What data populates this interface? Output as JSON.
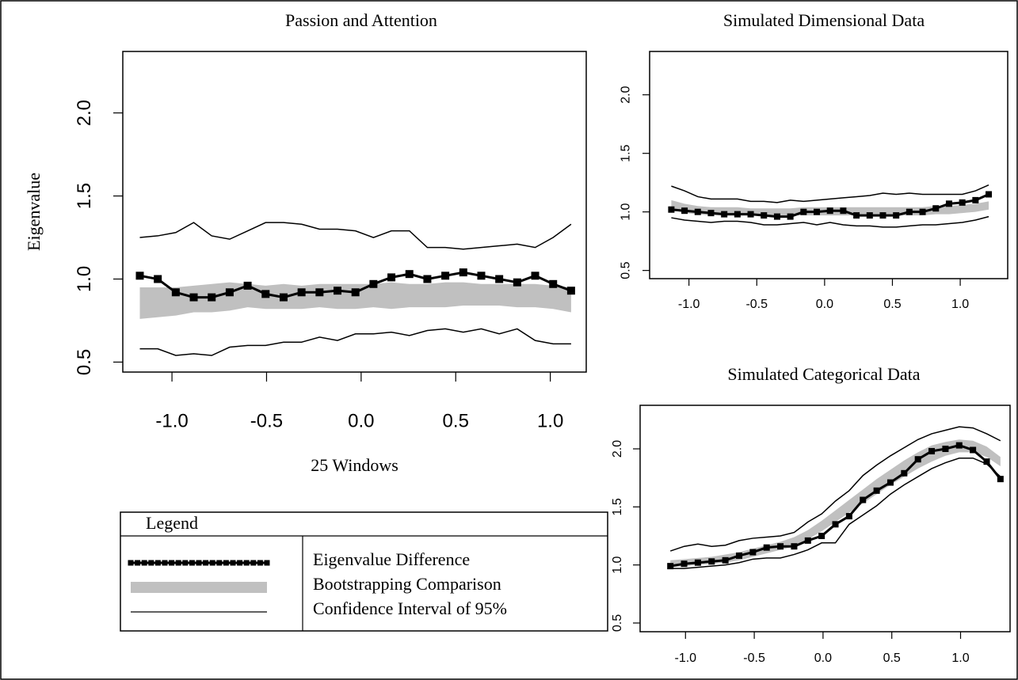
{
  "chart_data": [
    {
      "type": "line",
      "title": "Passion and Attention",
      "xlabel": "25 Windows",
      "ylabel": "Eigenvalue",
      "legend_title": "Legend",
      "x": [
        -1.17,
        -1.075,
        -0.98,
        -0.885,
        -0.79,
        -0.695,
        -0.6,
        -0.505,
        -0.41,
        -0.315,
        -0.22,
        -0.125,
        -0.03,
        0.065,
        0.16,
        0.255,
        0.35,
        0.445,
        0.54,
        0.635,
        0.73,
        0.825,
        0.92,
        1.015,
        1.11
      ],
      "series": [
        {
          "name": "Eigenvalue Difference",
          "style": "points",
          "color": "#000000",
          "values": [
            1.02,
            1.0,
            0.92,
            0.89,
            0.89,
            0.92,
            0.96,
            0.91,
            0.89,
            0.92,
            0.92,
            0.93,
            0.92,
            0.97,
            1.01,
            1.03,
            1.0,
            1.02,
            1.04,
            1.02,
            1.0,
            0.98,
            1.02,
            0.97,
            0.93
          ]
        },
        {
          "name": "Bootstrapping Comparison",
          "style": "band",
          "color": "#c0c0c0",
          "upper": [
            0.95,
            0.95,
            0.95,
            0.96,
            0.97,
            0.98,
            0.97,
            0.96,
            0.97,
            0.96,
            0.97,
            0.97,
            0.97,
            0.97,
            0.98,
            0.97,
            0.97,
            0.98,
            0.98,
            0.97,
            0.97,
            0.97,
            0.97,
            0.96,
            0.95
          ],
          "lower": [
            0.76,
            0.77,
            0.78,
            0.8,
            0.8,
            0.81,
            0.83,
            0.82,
            0.82,
            0.82,
            0.83,
            0.82,
            0.82,
            0.83,
            0.82,
            0.83,
            0.83,
            0.83,
            0.84,
            0.84,
            0.84,
            0.83,
            0.83,
            0.82,
            0.8
          ]
        },
        {
          "name": "Confidence Interval of 95%",
          "style": "lines",
          "color": "#000000",
          "upper": [
            1.25,
            1.26,
            1.28,
            1.34,
            1.26,
            1.24,
            1.29,
            1.34,
            1.34,
            1.33,
            1.3,
            1.3,
            1.29,
            1.25,
            1.29,
            1.29,
            1.19,
            1.19,
            1.18,
            1.19,
            1.2,
            1.21,
            1.19,
            1.25,
            1.33
          ],
          "lower": [
            0.58,
            0.58,
            0.54,
            0.55,
            0.54,
            0.59,
            0.6,
            0.6,
            0.62,
            0.62,
            0.65,
            0.63,
            0.67,
            0.67,
            0.68,
            0.66,
            0.69,
            0.7,
            0.68,
            0.7,
            0.67,
            0.7,
            0.63,
            0.61,
            0.61
          ]
        }
      ],
      "xlim": [
        -1.26,
        1.19
      ],
      "ylim": [
        0.44,
        2.37
      ],
      "xticks": [
        {
          "value": -1.0,
          "label": "-1.0"
        },
        -0.5,
        {
          "value": 0.0,
          "label": "0.0"
        },
        0.5,
        {
          "value": 1.0,
          "label": "1.0"
        }
      ],
      "yticks": [
        0.5,
        {
          "value": 1.0,
          "label": "1.0"
        },
        1.5,
        {
          "value": 2.0,
          "label": "2.0"
        }
      ]
    },
    {
      "type": "line",
      "title": "Simulated Dimensional Data",
      "x": [
        -1.13,
        -1.0325,
        -0.935,
        -0.8375,
        -0.74,
        -0.6425,
        -0.545,
        -0.4475,
        -0.35,
        -0.2525,
        -0.155,
        -0.0575,
        0.04,
        0.1375,
        0.235,
        0.3325,
        0.43,
        0.5275,
        0.625,
        0.7225,
        0.82,
        0.9175,
        1.015,
        1.1125,
        1.21
      ],
      "series": [
        {
          "style": "points",
          "color": "#000000",
          "values": [
            1.02,
            1.01,
            1.0,
            0.99,
            0.98,
            0.98,
            0.98,
            0.97,
            0.96,
            0.96,
            1.0,
            1.0,
            1.01,
            1.01,
            0.97,
            0.97,
            0.97,
            0.97,
            1.0,
            1.0,
            1.03,
            1.07,
            1.08,
            1.1,
            1.15
          ]
        },
        {
          "style": "band",
          "color": "#c0c0c0",
          "upper": [
            1.1,
            1.07,
            1.05,
            1.04,
            1.04,
            1.04,
            1.03,
            1.03,
            1.03,
            1.03,
            1.04,
            1.04,
            1.04,
            1.04,
            1.04,
            1.04,
            1.04,
            1.04,
            1.04,
            1.04,
            1.05,
            1.05,
            1.06,
            1.07,
            1.09
          ],
          "lower": [
            1.02,
            0.99,
            0.98,
            0.97,
            0.97,
            0.97,
            0.97,
            0.97,
            0.97,
            0.97,
            0.97,
            0.97,
            0.97,
            0.97,
            0.97,
            0.97,
            0.97,
            0.97,
            0.97,
            0.97,
            0.98,
            0.98,
            0.99,
            1.0,
            1.02
          ]
        },
        {
          "style": "lines",
          "color": "#000000",
          "upper": [
            1.22,
            1.18,
            1.13,
            1.11,
            1.11,
            1.11,
            1.09,
            1.09,
            1.08,
            1.1,
            1.09,
            1.1,
            1.11,
            1.12,
            1.13,
            1.14,
            1.16,
            1.15,
            1.16,
            1.15,
            1.15,
            1.15,
            1.15,
            1.18,
            1.23
          ],
          "lower": [
            0.95,
            0.93,
            0.92,
            0.91,
            0.92,
            0.92,
            0.91,
            0.89,
            0.89,
            0.9,
            0.91,
            0.89,
            0.91,
            0.89,
            0.88,
            0.88,
            0.87,
            0.87,
            0.88,
            0.89,
            0.89,
            0.9,
            0.91,
            0.93,
            0.96
          ]
        }
      ],
      "xlim": [
        -1.29,
        1.35
      ],
      "ylim": [
        0.43,
        2.37
      ],
      "xticks": [
        {
          "value": -1.0,
          "label": "-1.0"
        },
        -0.5,
        {
          "value": 0.0,
          "label": "0.0"
        },
        0.5,
        {
          "value": 1.0,
          "label": "1.0"
        }
      ],
      "yticks": [
        0.5,
        {
          "value": 1.0,
          "label": "1.0"
        },
        1.5,
        {
          "value": 2.0,
          "label": "2.0"
        }
      ]
    },
    {
      "type": "line",
      "title": "Simulated Categorical Data",
      "x": [
        -1.11,
        -1.01,
        -0.91,
        -0.81,
        -0.71,
        -0.61,
        -0.51,
        -0.41,
        -0.31,
        -0.21,
        -0.11,
        -0.01,
        0.09,
        0.19,
        0.29,
        0.39,
        0.49,
        0.59,
        0.69,
        0.79,
        0.89,
        0.99,
        1.09,
        1.19,
        1.29
      ],
      "series": [
        {
          "style": "points",
          "color": "#000000",
          "values": [
            0.99,
            1.01,
            1.02,
            1.03,
            1.04,
            1.08,
            1.11,
            1.15,
            1.16,
            1.16,
            1.21,
            1.25,
            1.35,
            1.42,
            1.56,
            1.64,
            1.71,
            1.79,
            1.91,
            1.98,
            2.0,
            2.03,
            1.99,
            1.89,
            1.74
          ]
        },
        {
          "style": "band",
          "color": "#c0c0c0",
          "upper": [
            1.04,
            1.05,
            1.06,
            1.07,
            1.09,
            1.11,
            1.14,
            1.17,
            1.2,
            1.24,
            1.3,
            1.38,
            1.47,
            1.56,
            1.65,
            1.74,
            1.82,
            1.9,
            1.97,
            2.03,
            2.06,
            2.08,
            2.07,
            2.02,
            1.93
          ],
          "lower": [
            0.98,
            0.99,
            1.0,
            1.01,
            1.02,
            1.04,
            1.07,
            1.1,
            1.13,
            1.16,
            1.22,
            1.29,
            1.37,
            1.45,
            1.53,
            1.61,
            1.69,
            1.76,
            1.83,
            1.89,
            1.94,
            1.97,
            1.97,
            1.93,
            1.85
          ]
        },
        {
          "style": "lines",
          "color": "#000000",
          "upper": [
            1.12,
            1.16,
            1.18,
            1.16,
            1.17,
            1.21,
            1.23,
            1.24,
            1.25,
            1.28,
            1.37,
            1.44,
            1.55,
            1.64,
            1.77,
            1.86,
            1.94,
            2.01,
            2.08,
            2.13,
            2.16,
            2.19,
            2.18,
            2.13,
            2.07
          ],
          "lower": [
            0.97,
            0.97,
            0.98,
            0.99,
            1.0,
            1.02,
            1.05,
            1.06,
            1.06,
            1.09,
            1.13,
            1.19,
            1.19,
            1.35,
            1.43,
            1.51,
            1.61,
            1.69,
            1.76,
            1.83,
            1.88,
            1.92,
            1.92,
            1.87,
            1.76
          ]
        }
      ],
      "xlim": [
        -1.33,
        1.36
      ],
      "ylim": [
        0.425,
        2.375
      ],
      "xticks": [
        {
          "value": -1.0,
          "label": "-1.0"
        },
        -0.5,
        {
          "value": 0.0,
          "label": "0.0"
        },
        0.5,
        {
          "value": 1.0,
          "label": "1.0"
        }
      ],
      "yticks": [
        0.5,
        {
          "value": 1.0,
          "label": "1.0"
        },
        1.5,
        {
          "value": 2.0,
          "label": "2.0"
        }
      ]
    }
  ]
}
